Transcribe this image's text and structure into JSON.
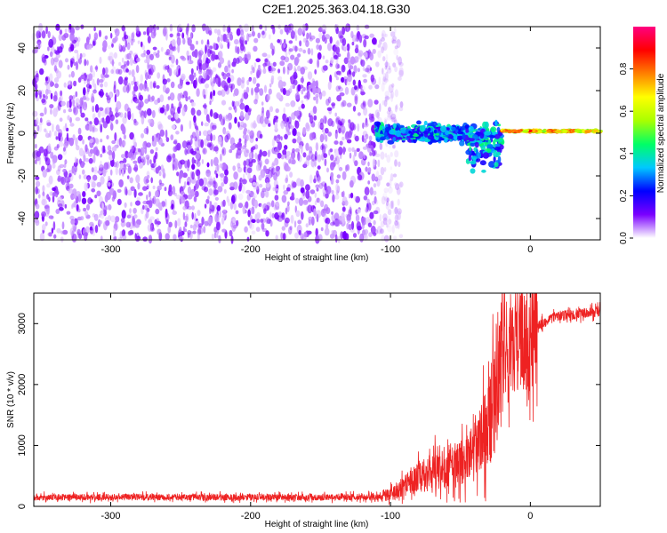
{
  "title": "C2E1.2025.363.04.18.G30",
  "chart_data": [
    {
      "type": "heatmap",
      "name": "spectrogram",
      "xlabel": "Height of straight line (km)",
      "ylabel": "Frequency (Hz)",
      "xlim": [
        -355,
        50
      ],
      "ylim": [
        -50,
        50
      ],
      "xticks": [
        -300,
        -200,
        -100,
        0
      ],
      "yticks": [
        -40,
        -20,
        0,
        20,
        40
      ],
      "colorbar": {
        "label": "Normalized spectral amplitude",
        "range": [
          0,
          1
        ],
        "ticks": [
          0.0,
          0.2,
          0.4,
          0.6,
          0.8
        ],
        "tick_labels": [
          "0.0",
          "0.2",
          "0.4",
          "0.6",
          "0.8"
        ],
        "colors": [
          "#ffffff",
          "#7a00ff",
          "#0000ff",
          "#00c8ff",
          "#00ff66",
          "#aaff00",
          "#ffff00",
          "#ff8000",
          "#ff0000",
          "#ff0080"
        ]
      },
      "regions": [
        {
          "name": "noise",
          "x_range": [
            -355,
            -100
          ],
          "freq_range": [
            -50,
            50
          ],
          "amplitude_range": [
            0.02,
            0.12
          ]
        },
        {
          "name": "signal-band",
          "x_range": [
            -110,
            -20
          ],
          "freq_center": 0,
          "freq_halfwidth": 6,
          "amplitude_range": [
            0.15,
            0.45
          ]
        },
        {
          "name": "signal-line",
          "x_range": [
            -20,
            50
          ],
          "freq_center": 1,
          "freq_halfwidth": 1.5,
          "amplitude_range": [
            0.5,
            0.95
          ]
        }
      ]
    },
    {
      "type": "line",
      "name": "snr",
      "xlabel": "Height of straight line (km)",
      "ylabel": "SNR (10 * v/v)",
      "xlim": [
        -355,
        50
      ],
      "ylim": [
        0,
        3500
      ],
      "xticks": [
        -300,
        -200,
        -100,
        0
      ],
      "yticks": [
        0,
        1000,
        2000,
        3000
      ],
      "color": "#ee2222",
      "series": [
        {
          "name": "SNR",
          "x": [
            -355,
            -300,
            -250,
            -200,
            -150,
            -110,
            -100,
            -90,
            -80,
            -70,
            -60,
            -50,
            -40,
            -30,
            -25,
            -20,
            -15,
            -10,
            -5,
            0,
            5,
            10,
            15,
            20,
            30,
            40,
            50
          ],
          "values": [
            150,
            150,
            150,
            150,
            150,
            160,
            200,
            330,
            480,
            580,
            640,
            720,
            900,
            1400,
            1900,
            2350,
            2600,
            2750,
            2850,
            2900,
            2960,
            3020,
            3080,
            3120,
            3150,
            3180,
            3200
          ]
        }
      ]
    }
  ]
}
